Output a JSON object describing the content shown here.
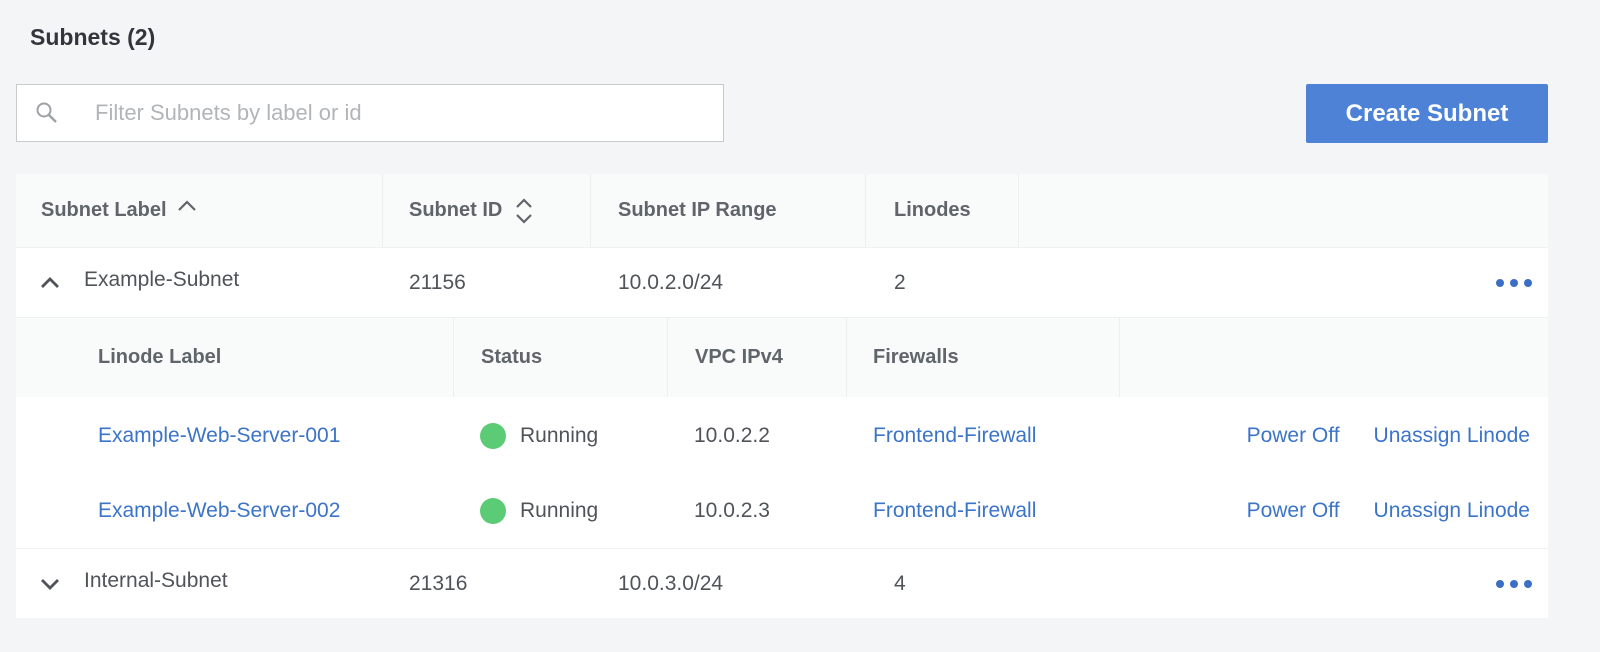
{
  "title": "Subnets (2)",
  "search": {
    "placeholder": "Filter Subnets by label or id",
    "value": ""
  },
  "create_button": "Create Subnet",
  "columns": [
    "Subnet Label",
    "Subnet ID",
    "Subnet IP Range",
    "Linodes"
  ],
  "subnets": [
    {
      "label": "Example-Subnet",
      "id": "21156",
      "range": "10.0.2.0/24",
      "linodes": "2",
      "expanded": true
    },
    {
      "label": "Internal-Subnet",
      "id": "21316",
      "range": "10.0.3.0/24",
      "linodes": "4",
      "expanded": false
    }
  ],
  "linode_columns": [
    "Linode Label",
    "Status",
    "VPC IPv4",
    "Firewalls"
  ],
  "linodes": [
    {
      "label": "Example-Web-Server-001",
      "status": "Running",
      "ipv4": "10.0.2.2",
      "firewall": "Frontend-Firewall",
      "power": "Power Off",
      "unassign": "Unassign Linode"
    },
    {
      "label": "Example-Web-Server-002",
      "status": "Running",
      "ipv4": "10.0.2.3",
      "firewall": "Frontend-Firewall",
      "power": "Power Off",
      "unassign": "Unassign Linode"
    }
  ],
  "colors": {
    "accent": "#4d82d6",
    "link": "#3b74c8",
    "running": "#5ccb76"
  }
}
